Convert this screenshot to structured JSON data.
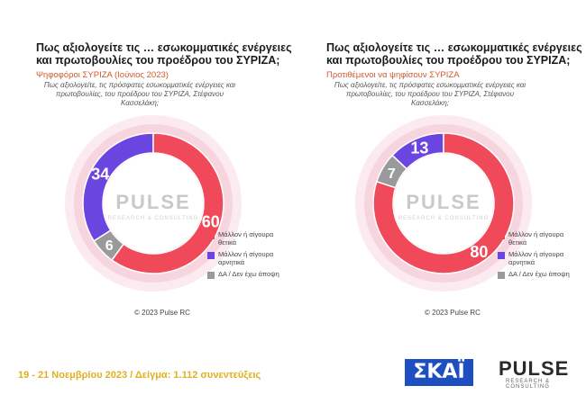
{
  "colors": {
    "positive": "#f04a5a",
    "negative": "#6a45e0",
    "dk": "#9a9a9a",
    "subtitle": "#d05a2a",
    "footer": "#e0b020"
  },
  "chart_data": [
    {
      "type": "pie",
      "title": "Πως αξιολογείτε τις … εσωκομματικές ενέργειες και πρωτοβουλίες του προέδρου του ΣΥΡΙΖΑ;",
      "subtitle": "Ψηφοφόροι ΣΥΡΙΖΑ (Ιούνιος 2023)",
      "question": "Πως αξιολογείτε, τις πρόσφατες εσωκομματικές ενέργειες και πρωτοβουλίες, του προέδρου του ΣΥΡΙΖΑ, Στέφανου Κασσελάκη;",
      "categories": [
        "Μάλλον ή σίγουρα θετικά",
        "Μάλλον ή σίγουρα αρνητικά",
        "ΔΑ / Δεν έχω άποψη"
      ],
      "values": [
        60,
        34,
        6
      ],
      "watermark": "PULSE",
      "watermark_sub": "RESEARCH & CONSULTING",
      "copyright": "© 2023 Pulse RC"
    },
    {
      "type": "pie",
      "title": "Πως αξιολογείτε τις … εσωκομματικές ενέργειες και πρωτοβουλίες του προέδρου του ΣΥΡΙΖΑ;",
      "subtitle": "Προτιθέμενοι να ψηφίσουν ΣΥΡΙΖΑ",
      "question": "Πως αξιολογείτε, τις πρόσφατες εσωκομματικές ενέργειες και πρωτοβουλίες, του προέδρου του ΣΥΡΙΖΑ, Στέφανου Κασσελάκη;",
      "categories": [
        "Μάλλον ή σίγουρα θετικά",
        "Μάλλον ή σίγουρα αρνητικά",
        "ΔΑ / Δεν έχω άποψη"
      ],
      "values": [
        80,
        13,
        7
      ],
      "watermark": "PULSE",
      "watermark_sub": "RESEARCH & CONSULTING",
      "copyright": "© 2023 Pulse RC"
    }
  ],
  "footer": {
    "text": "19 - 21  Νοεμβρίου  2023  /  Δείγμα:  1.112 συνεντεύξεις"
  },
  "logos": {
    "skai": "ΣΚΑΪ",
    "pulse": "PULSE",
    "pulse_sub": "RESEARCH & CONSULTING"
  }
}
